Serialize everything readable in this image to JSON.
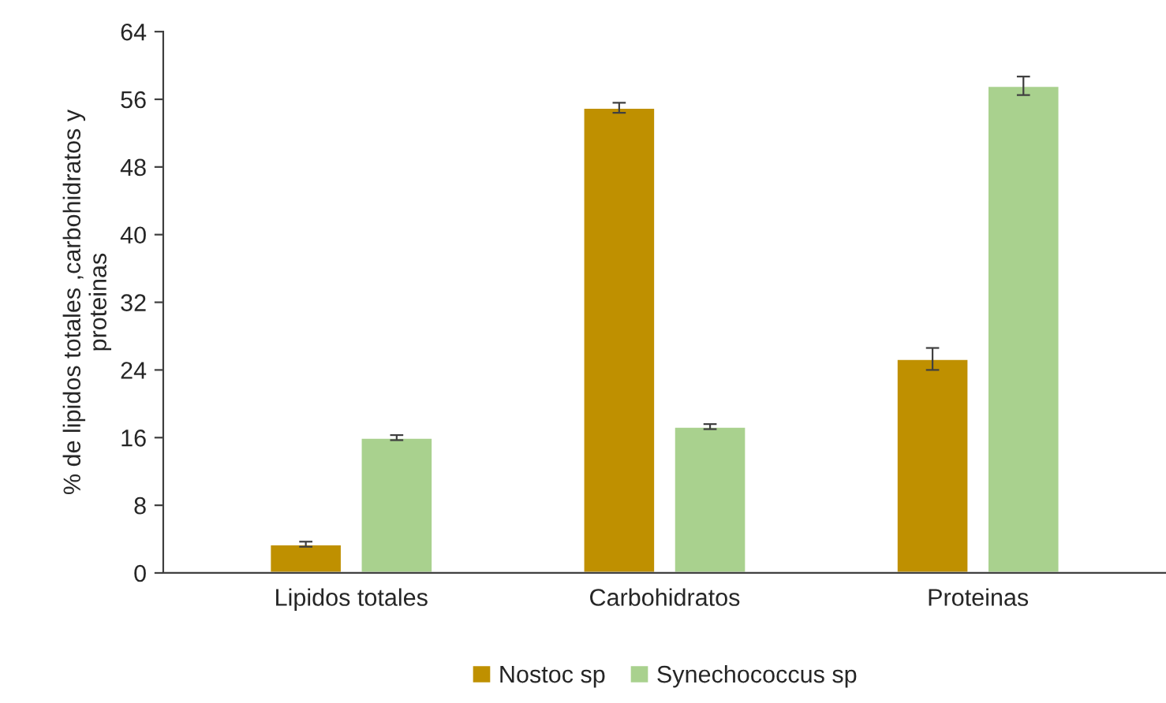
{
  "chart_data": {
    "type": "bar",
    "ylabel": "% de lipidos totales ,carbohidratos y\nproteinas",
    "categories": [
      "Lipidos totales",
      "Carbohidratos",
      "Proteinas"
    ],
    "series": [
      {
        "name": "Nostoc sp",
        "color": "#bf9000",
        "values": [
          3.4,
          55.0,
          25.3
        ],
        "errors": [
          0.3,
          0.6,
          1.3
        ]
      },
      {
        "name": "Synechococcus sp",
        "color": "#a9d18e",
        "values": [
          16.0,
          17.3,
          57.6
        ],
        "errors": [
          0.3,
          0.3,
          1.1
        ]
      }
    ],
    "ylim": [
      0,
      64
    ],
    "yticks": [
      0,
      8,
      16,
      24,
      32,
      40,
      48,
      56,
      64
    ],
    "grid": false,
    "legend": "bottom"
  }
}
